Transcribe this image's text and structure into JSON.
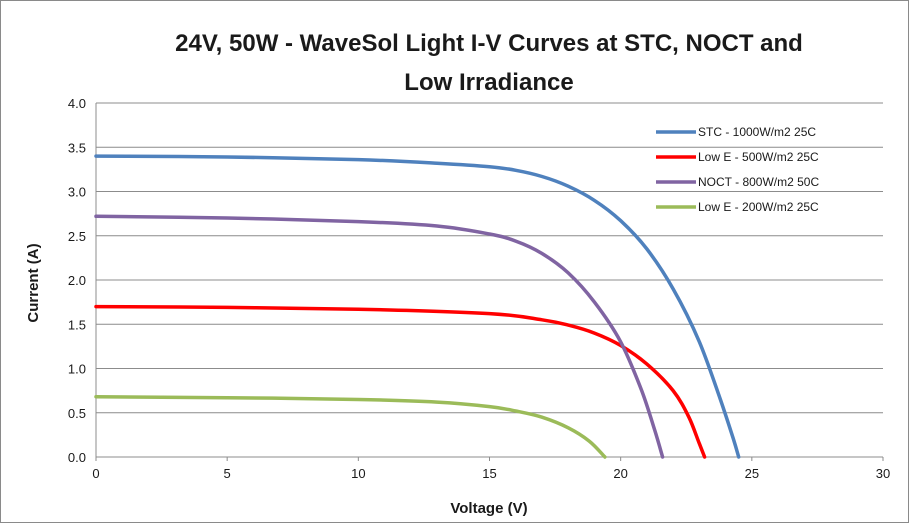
{
  "chart_data": {
    "type": "line",
    "title_lines": [
      "24V, 50W - WaveSol Light I-V Curves at STC, NOCT and",
      "Low Irradiance"
    ],
    "xlabel": "Voltage (V)",
    "ylabel": "Current (A)",
    "xlim": [
      0,
      30
    ],
    "ylim": [
      0,
      4
    ],
    "x_ticks": [
      "0",
      "5",
      "10",
      "15",
      "20",
      "25",
      "30"
    ],
    "y_ticks": [
      "0.0",
      "0.5",
      "1.0",
      "1.5",
      "2.0",
      "2.5",
      "3.0",
      "3.5",
      "4.0"
    ],
    "grid": "horizontal",
    "legend_position": "top-right",
    "series": [
      {
        "name": "STC - 1000W/m2  25C",
        "color": "#4f81bd",
        "points": [
          [
            0,
            3.4
          ],
          [
            5,
            3.39
          ],
          [
            10,
            3.36
          ],
          [
            13,
            3.32
          ],
          [
            15,
            3.28
          ],
          [
            16,
            3.24
          ],
          [
            17,
            3.17
          ],
          [
            18,
            3.06
          ],
          [
            19,
            2.9
          ],
          [
            20,
            2.67
          ],
          [
            21,
            2.35
          ],
          [
            22,
            1.9
          ],
          [
            23,
            1.3
          ],
          [
            23.8,
            0.65
          ],
          [
            24.3,
            0.2
          ],
          [
            24.5,
            0.0
          ]
        ]
      },
      {
        "name": "Low E - 500W/m2  25C",
        "color": "#ff0000",
        "points": [
          [
            0,
            1.7
          ],
          [
            5,
            1.69
          ],
          [
            10,
            1.67
          ],
          [
            15,
            1.62
          ],
          [
            17,
            1.55
          ],
          [
            18,
            1.49
          ],
          [
            19,
            1.4
          ],
          [
            20,
            1.26
          ],
          [
            21,
            1.05
          ],
          [
            22,
            0.75
          ],
          [
            22.6,
            0.45
          ],
          [
            23,
            0.15
          ],
          [
            23.2,
            0.0
          ]
        ]
      },
      {
        "name": "NOCT - 800W/m2  50C",
        "color": "#8064a2",
        "points": [
          [
            0,
            2.72
          ],
          [
            5,
            2.7
          ],
          [
            10,
            2.66
          ],
          [
            13,
            2.61
          ],
          [
            15,
            2.52
          ],
          [
            16,
            2.44
          ],
          [
            17,
            2.3
          ],
          [
            18,
            2.08
          ],
          [
            19,
            1.75
          ],
          [
            20,
            1.3
          ],
          [
            20.8,
            0.75
          ],
          [
            21.3,
            0.3
          ],
          [
            21.6,
            0.0
          ]
        ]
      },
      {
        "name": "Low E - 200W/m2  25C",
        "color": "#9bbb59",
        "points": [
          [
            0,
            0.68
          ],
          [
            5,
            0.67
          ],
          [
            10,
            0.65
          ],
          [
            13,
            0.62
          ],
          [
            15,
            0.57
          ],
          [
            16,
            0.52
          ],
          [
            17,
            0.45
          ],
          [
            18,
            0.33
          ],
          [
            18.8,
            0.18
          ],
          [
            19.4,
            0.0
          ]
        ]
      }
    ]
  }
}
